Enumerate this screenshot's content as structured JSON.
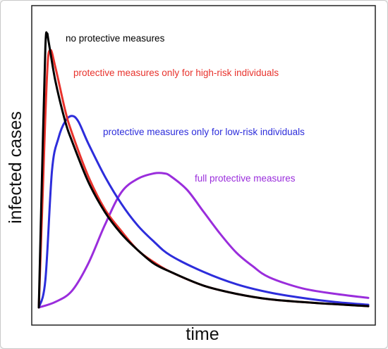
{
  "chart_data": {
    "type": "line",
    "title": "",
    "xlabel": "time",
    "ylabel": "infected cases",
    "ylim": [
      0,
      1
    ],
    "grid": false,
    "x_ticks": [],
    "y_ticks": [],
    "series": [
      {
        "name": "no protective measures",
        "color": "#000000",
        "x": [
          0.0,
          0.01,
          0.02,
          0.025,
          0.03,
          0.05,
          0.08,
          0.1,
          0.15,
          0.2,
          0.25,
          0.3,
          0.35,
          0.4,
          0.5,
          0.6,
          0.7,
          0.8,
          0.9,
          1.0
        ],
        "y": [
          0.0,
          0.5,
          0.95,
          1.0,
          0.97,
          0.83,
          0.68,
          0.61,
          0.46,
          0.35,
          0.27,
          0.21,
          0.16,
          0.13,
          0.08,
          0.05,
          0.03,
          0.02,
          0.012,
          0.005
        ]
      },
      {
        "name": "protective measures only for high-risk individuals",
        "color": "#e8322c",
        "x": [
          0.0,
          0.01,
          0.025,
          0.035,
          0.05,
          0.08,
          0.1,
          0.15,
          0.2,
          0.25,
          0.3,
          0.35,
          0.4,
          0.5,
          0.6,
          0.7,
          0.8,
          0.9,
          1.0
        ],
        "y": [
          0.0,
          0.35,
          0.85,
          0.94,
          0.88,
          0.72,
          0.64,
          0.48,
          0.36,
          0.28,
          0.21,
          0.165,
          0.13,
          0.08,
          0.05,
          0.03,
          0.02,
          0.012,
          0.005
        ]
      },
      {
        "name": "protective measures only for low-risk individuals",
        "color": "#2d2ddb",
        "x": [
          0.0,
          0.02,
          0.04,
          0.06,
          0.08,
          0.1,
          0.12,
          0.15,
          0.2,
          0.25,
          0.3,
          0.35,
          0.4,
          0.5,
          0.6,
          0.7,
          0.8,
          0.9,
          1.0
        ],
        "y": [
          0.0,
          0.1,
          0.5,
          0.62,
          0.68,
          0.7,
          0.68,
          0.6,
          0.48,
          0.38,
          0.3,
          0.24,
          0.19,
          0.13,
          0.085,
          0.055,
          0.035,
          0.02,
          0.01
        ]
      },
      {
        "name": "full protective measures",
        "color": "#9a2ddc",
        "x": [
          0.0,
          0.05,
          0.1,
          0.15,
          0.2,
          0.25,
          0.3,
          0.35,
          0.38,
          0.4,
          0.45,
          0.5,
          0.55,
          0.6,
          0.65,
          0.7,
          0.8,
          0.9,
          1.0
        ],
        "y": [
          0.0,
          0.02,
          0.06,
          0.16,
          0.3,
          0.42,
          0.47,
          0.49,
          0.49,
          0.48,
          0.43,
          0.35,
          0.27,
          0.2,
          0.15,
          0.11,
          0.07,
          0.05,
          0.035
        ]
      }
    ]
  }
}
